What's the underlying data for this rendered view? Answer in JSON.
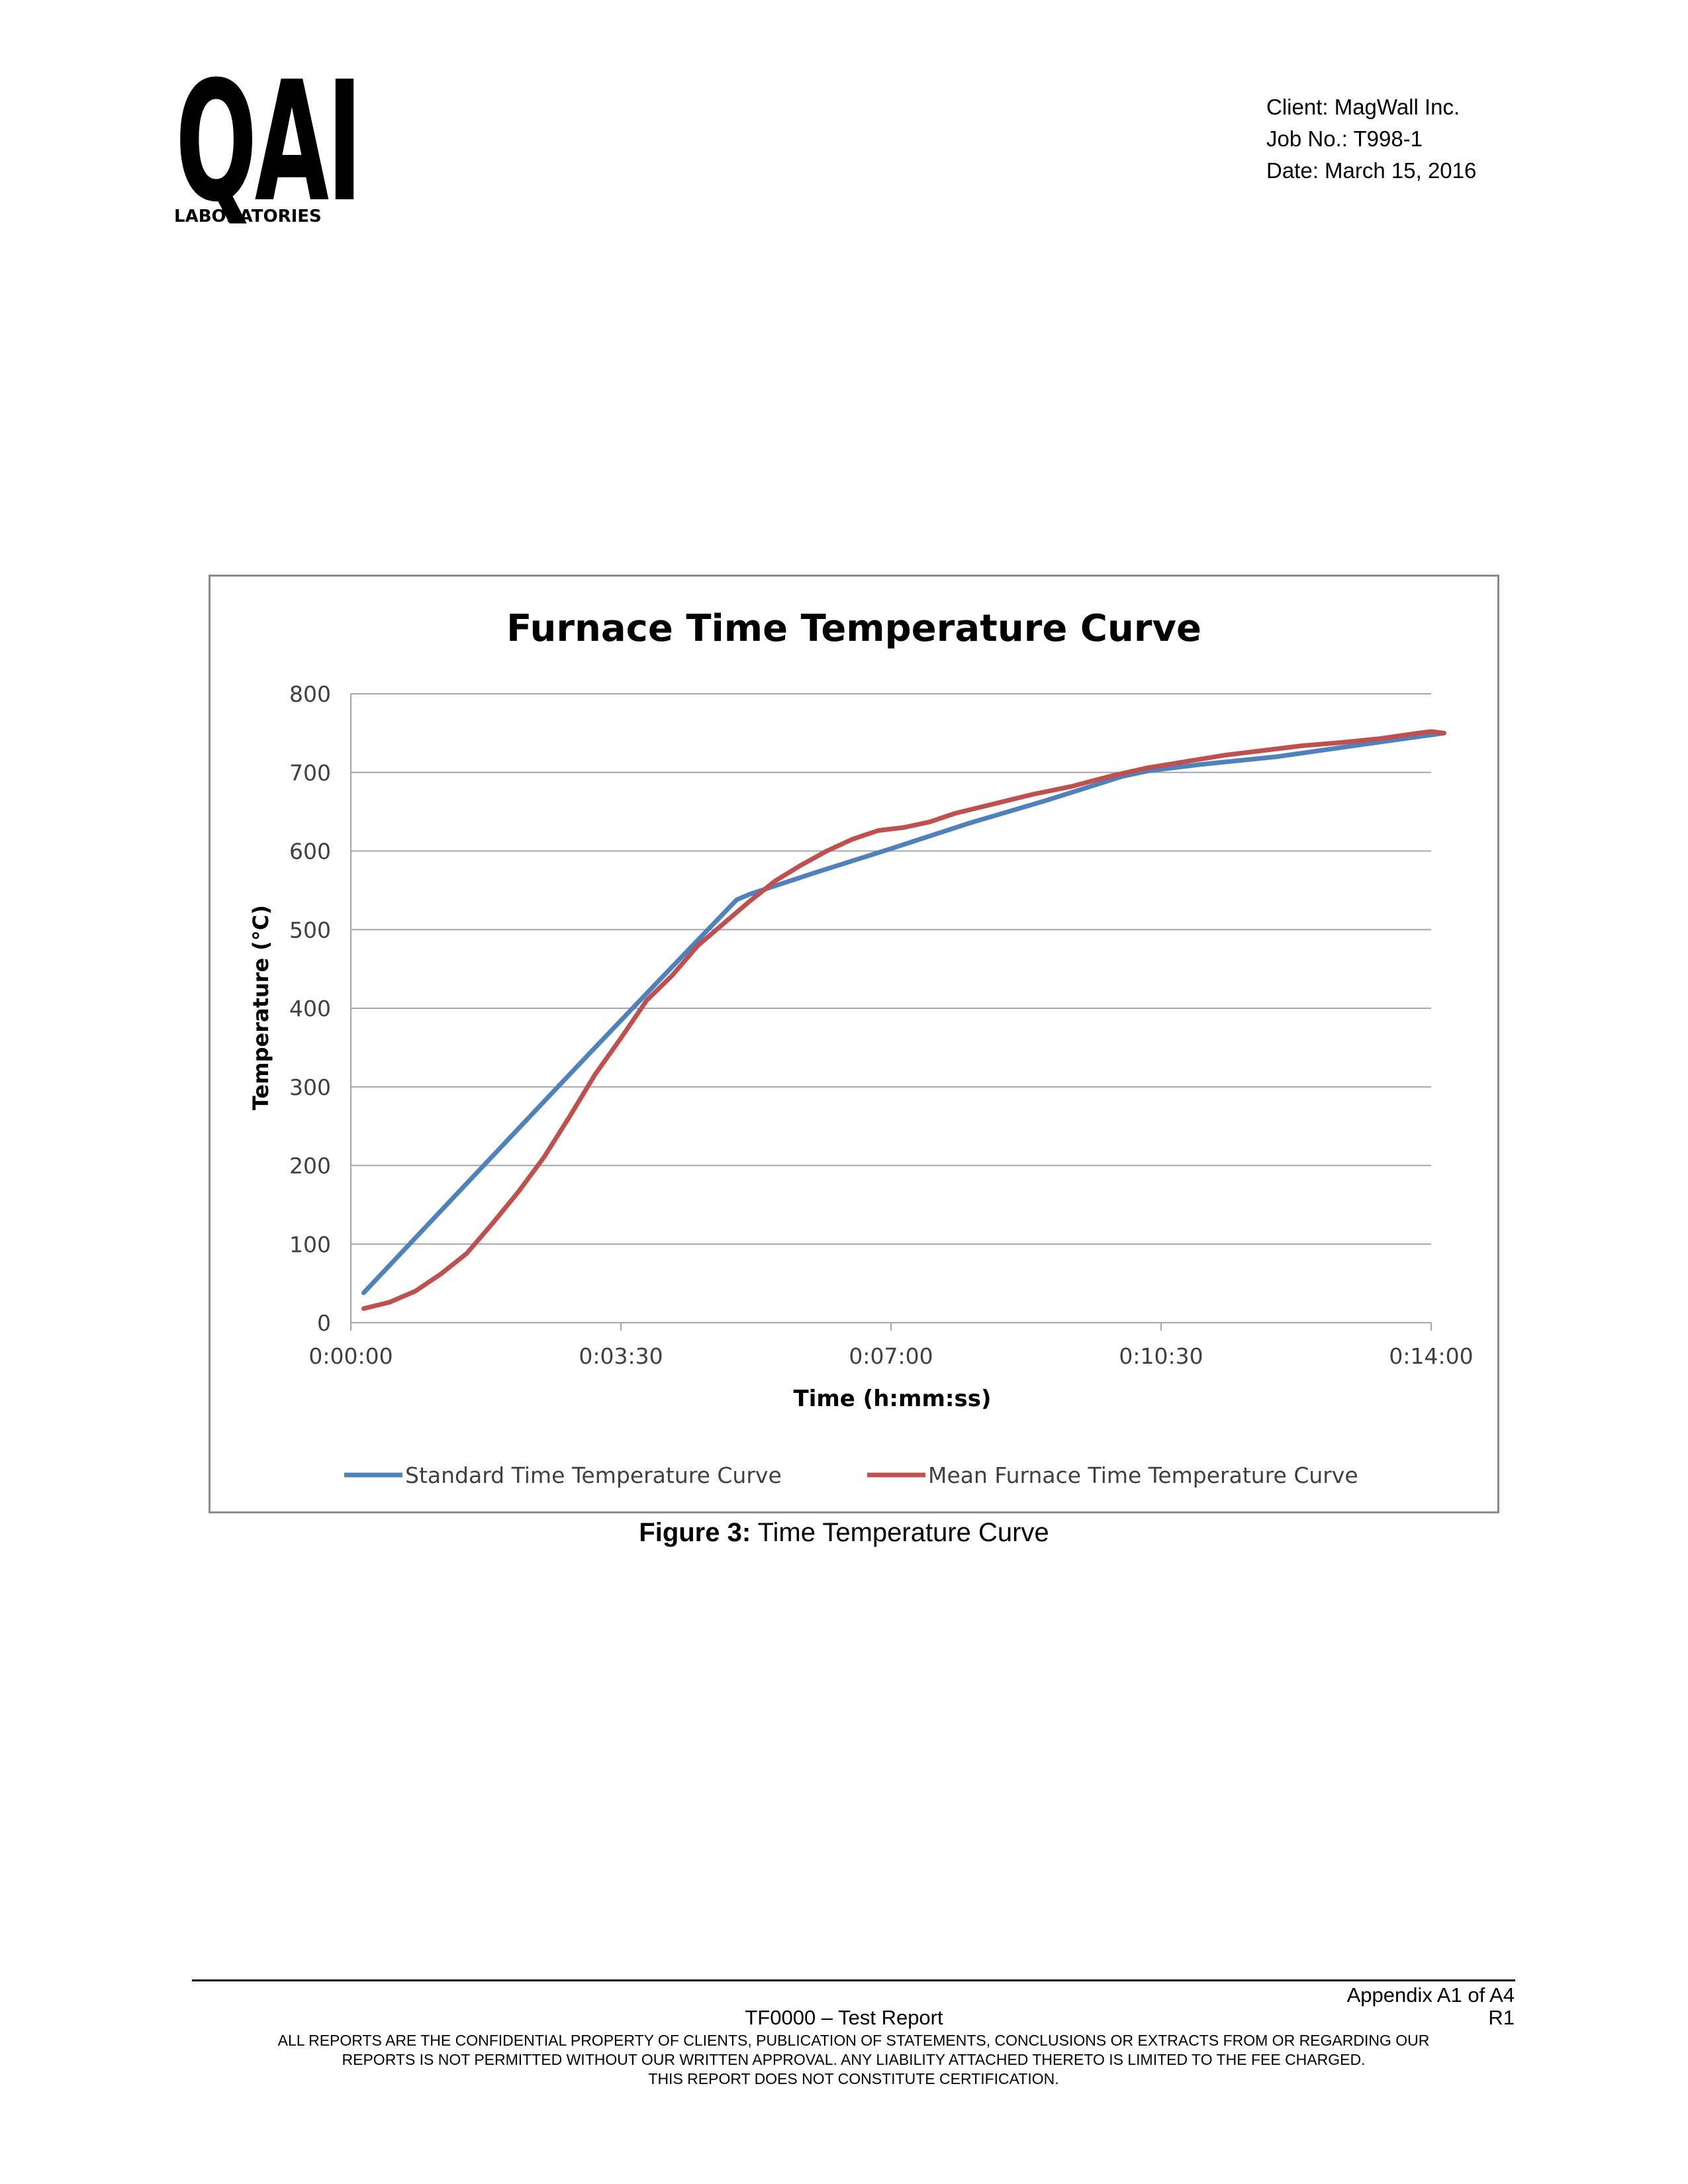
{
  "header": {
    "logo": {
      "mark": "QAI",
      "subtitle": "LABORATORIES"
    },
    "client_line": "Client: MagWall Inc.",
    "job_line": "Job No.: T998-1",
    "date_line": "Date: March 15, 2016"
  },
  "chart_data": {
    "type": "line",
    "title": "Furnace Time Temperature Curve",
    "xlabel": "Time (h:mm:ss)",
    "ylabel": "Temperature (°C)",
    "ylim": [
      0,
      800
    ],
    "xlim_seconds": [
      0,
      840
    ],
    "x_ticks": [
      "0:00:00",
      "0:03:30",
      "0:07:00",
      "0:10:30",
      "0:14:00"
    ],
    "y_ticks": [
      "0",
      "100",
      "200",
      "300",
      "400",
      "500",
      "600",
      "700",
      "800"
    ],
    "grid": "horizontal",
    "legend_position": "bottom",
    "series": [
      {
        "name": "Standard Time Temperature Curve",
        "color": "#4f81bd",
        "x": [
          "0:00:10",
          "0:01:00",
          "0:02:00",
          "0:03:00",
          "0:04:00",
          "0:05:00",
          "0:05:10",
          "0:06:00",
          "0:07:00",
          "0:08:00",
          "0:09:00",
          "0:10:00",
          "0:10:20",
          "0:11:00",
          "0:12:00",
          "0:13:00",
          "0:14:10"
        ],
        "values": [
          38,
          125,
          229,
          333,
          436,
          538,
          545,
          572,
          603,
          635,
          664,
          695,
          702,
          710,
          720,
          734,
          750
        ]
      },
      {
        "name": "Mean Furnace Time Temperature Curve",
        "color": "#c0504d",
        "x": [
          "0:00:10",
          "0:00:30",
          "0:00:50",
          "0:01:10",
          "0:01:30",
          "0:01:50",
          "0:02:10",
          "0:02:30",
          "0:02:50",
          "0:03:10",
          "0:03:30",
          "0:03:50",
          "0:04:10",
          "0:04:30",
          "0:04:50",
          "0:05:10",
          "0:05:30",
          "0:05:50",
          "0:06:10",
          "0:06:30",
          "0:06:50",
          "0:07:10",
          "0:07:30",
          "0:07:50",
          "0:08:20",
          "0:08:50",
          "0:09:20",
          "0:09:50",
          "0:10:20",
          "0:10:50",
          "0:11:20",
          "0:11:50",
          "0:12:20",
          "0:12:50",
          "0:13:20",
          "0:13:50",
          "0:14:00",
          "0:14:10"
        ],
        "values": [
          18,
          26,
          40,
          62,
          88,
          126,
          166,
          210,
          262,
          316,
          362,
          410,
          442,
          480,
          508,
          536,
          562,
          582,
          600,
          615,
          626,
          630,
          637,
          648,
          660,
          672,
          682,
          695,
          706,
          714,
          722,
          728,
          734,
          738,
          743,
          750,
          752,
          750
        ]
      }
    ]
  },
  "caption": {
    "label": "Figure 3:",
    "text": " Time Temperature Curve"
  },
  "footer": {
    "appendix": "Appendix A1 of A4",
    "report_name": "TF0000 – Test Report",
    "revision": "R1",
    "disclaimer_1": "ALL REPORTS ARE THE CONFIDENTIAL PROPERTY OF CLIENTS, PUBLICATION OF STATEMENTS, CONCLUSIONS OR EXTRACTS FROM OR REGARDING OUR",
    "disclaimer_2": "REPORTS IS NOT PERMITTED WITHOUT OUR WRITTEN APPROVAL. ANY LIABILITY ATTACHED THERETO IS LIMITED TO THE FEE CHARGED.",
    "disclaimer_3": "THIS REPORT DOES NOT CONSTITUTE CERTIFICATION."
  }
}
